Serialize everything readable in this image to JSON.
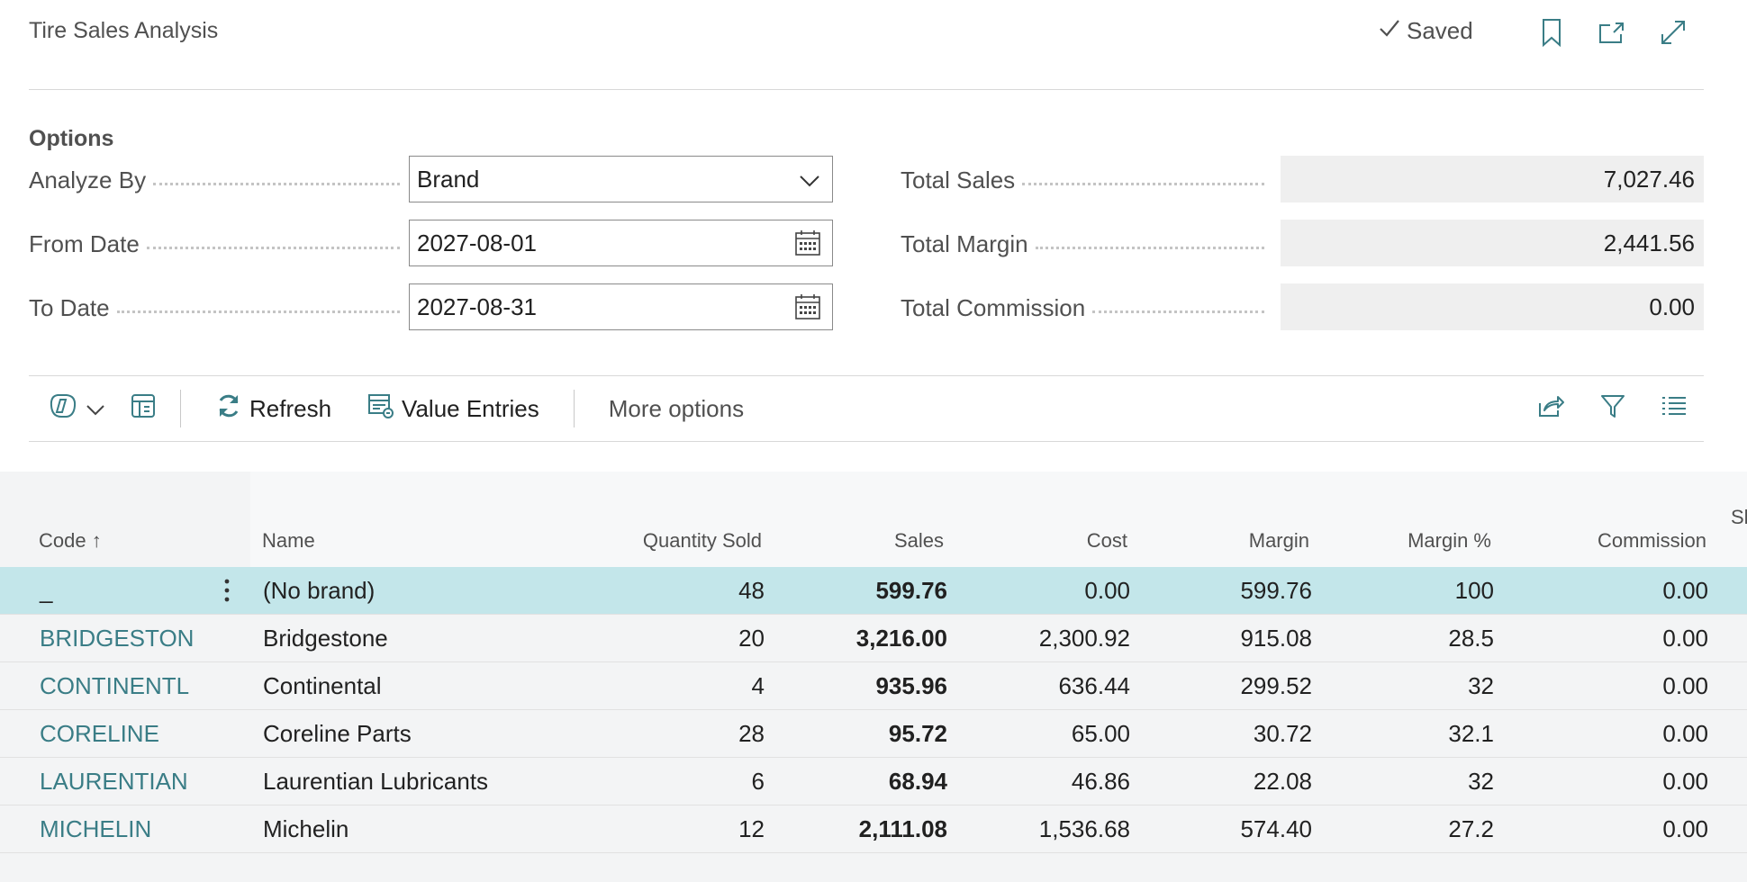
{
  "header": {
    "title": "Tire Sales Analysis",
    "saved_label": "Saved",
    "icons": [
      "checkmark-icon",
      "bookmark-icon",
      "open-new-window-icon",
      "expand-icon"
    ]
  },
  "options": {
    "section_label": "Options",
    "analyze_by": {
      "label": "Analyze By",
      "value": "Brand"
    },
    "from_date": {
      "label": "From Date",
      "value": "2027-08-01"
    },
    "to_date": {
      "label": "To Date",
      "value": "2027-08-31"
    },
    "total_sales": {
      "label": "Total Sales",
      "value": "7,027.46"
    },
    "total_margin": {
      "label": "Total Margin",
      "value": "2,441.56"
    },
    "total_commission": {
      "label": "Total Commission",
      "value": "0.00"
    }
  },
  "toolbar": {
    "refresh_label": "Refresh",
    "value_entries_label": "Value Entries",
    "more_options_label": "More options",
    "icons": [
      "copilot-icon",
      "chevron-down-icon",
      "edit-list-icon",
      "refresh-icon",
      "value-entries-icon",
      "share-icon",
      "filter-icon",
      "list-view-icon"
    ]
  },
  "table": {
    "columns": [
      "Code",
      "Name",
      "Quantity Sold",
      "Sales",
      "Cost",
      "Margin",
      "Margin %",
      "Commission",
      "Sh"
    ],
    "sort_indicator": "↑",
    "rows": [
      {
        "code": "_",
        "name": "(No brand)",
        "qty": "48",
        "sales": "599.76",
        "cost": "0.00",
        "margin": "599.76",
        "margin_pct": "100",
        "commission": "0.00"
      },
      {
        "code": "BRIDGESTON",
        "name": "Bridgestone",
        "qty": "20",
        "sales": "3,216.00",
        "cost": "2,300.92",
        "margin": "915.08",
        "margin_pct": "28.5",
        "commission": "0.00"
      },
      {
        "code": "CONTINENTL",
        "name": "Continental",
        "qty": "4",
        "sales": "935.96",
        "cost": "636.44",
        "margin": "299.52",
        "margin_pct": "32",
        "commission": "0.00"
      },
      {
        "code": "CORELINE",
        "name": "Coreline Parts",
        "qty": "28",
        "sales": "95.72",
        "cost": "65.00",
        "margin": "30.72",
        "margin_pct": "32.1",
        "commission": "0.00"
      },
      {
        "code": "LAURENTIAN",
        "name": "Laurentian Lubricants",
        "qty": "6",
        "sales": "68.94",
        "cost": "46.86",
        "margin": "22.08",
        "margin_pct": "32",
        "commission": "0.00"
      },
      {
        "code": "MICHELIN",
        "name": "Michelin",
        "qty": "12",
        "sales": "2,111.08",
        "cost": "1,536.68",
        "margin": "574.40",
        "margin_pct": "27.2",
        "commission": "0.00"
      }
    ]
  },
  "colors": {
    "accent": "#3a7d86",
    "selected_row": "#c3e6ea",
    "grid_background": "#f3f4f5"
  }
}
